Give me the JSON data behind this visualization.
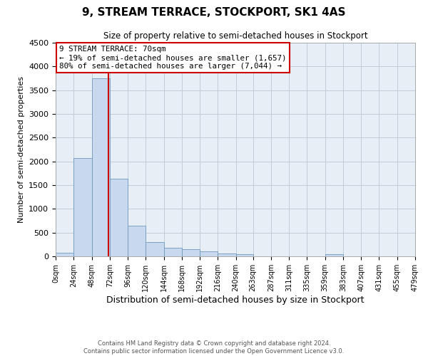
{
  "title": "9, STREAM TERRACE, STOCKPORT, SK1 4AS",
  "subtitle": "Size of property relative to semi-detached houses in Stockport",
  "xlabel": "Distribution of semi-detached houses by size in Stockport",
  "ylabel": "Number of semi-detached properties",
  "footer_line1": "Contains HM Land Registry data © Crown copyright and database right 2024.",
  "footer_line2": "Contains public sector information licensed under the Open Government Licence v3.0.",
  "annotation_title": "9 STREAM TERRACE: 70sqm",
  "annotation_line1": "← 19% of semi-detached houses are smaller (1,657)",
  "annotation_line2": "80% of semi-detached houses are larger (7,044) →",
  "property_size": 70,
  "bin_edges": [
    0,
    24,
    48,
    72,
    96,
    120,
    144,
    168,
    192,
    216,
    240,
    263,
    287,
    311,
    335,
    359,
    383,
    407,
    431,
    455,
    479
  ],
  "bin_counts": [
    80,
    2070,
    3750,
    1630,
    640,
    300,
    175,
    145,
    105,
    55,
    40,
    0,
    0,
    0,
    0,
    45,
    0,
    0,
    0,
    0
  ],
  "bar_color": "#c8d8ee",
  "bar_edge_color": "#7099bb",
  "vline_color": "#cc0000",
  "vline_x": 70,
  "ylim": [
    0,
    4500
  ],
  "yticks": [
    0,
    500,
    1000,
    1500,
    2000,
    2500,
    3000,
    3500,
    4000,
    4500
  ],
  "xtick_labels": [
    "0sqm",
    "24sqm",
    "48sqm",
    "72sqm",
    "96sqm",
    "120sqm",
    "144sqm",
    "168sqm",
    "192sqm",
    "216sqm",
    "240sqm",
    "263sqm",
    "287sqm",
    "311sqm",
    "335sqm",
    "359sqm",
    "383sqm",
    "407sqm",
    "431sqm",
    "455sqm",
    "479sqm"
  ],
  "annotation_box_edge_color": "#cc0000",
  "ax_bg_color": "#e8eef5",
  "background_color": "#ffffff",
  "grid_color": "#c0ccd8"
}
